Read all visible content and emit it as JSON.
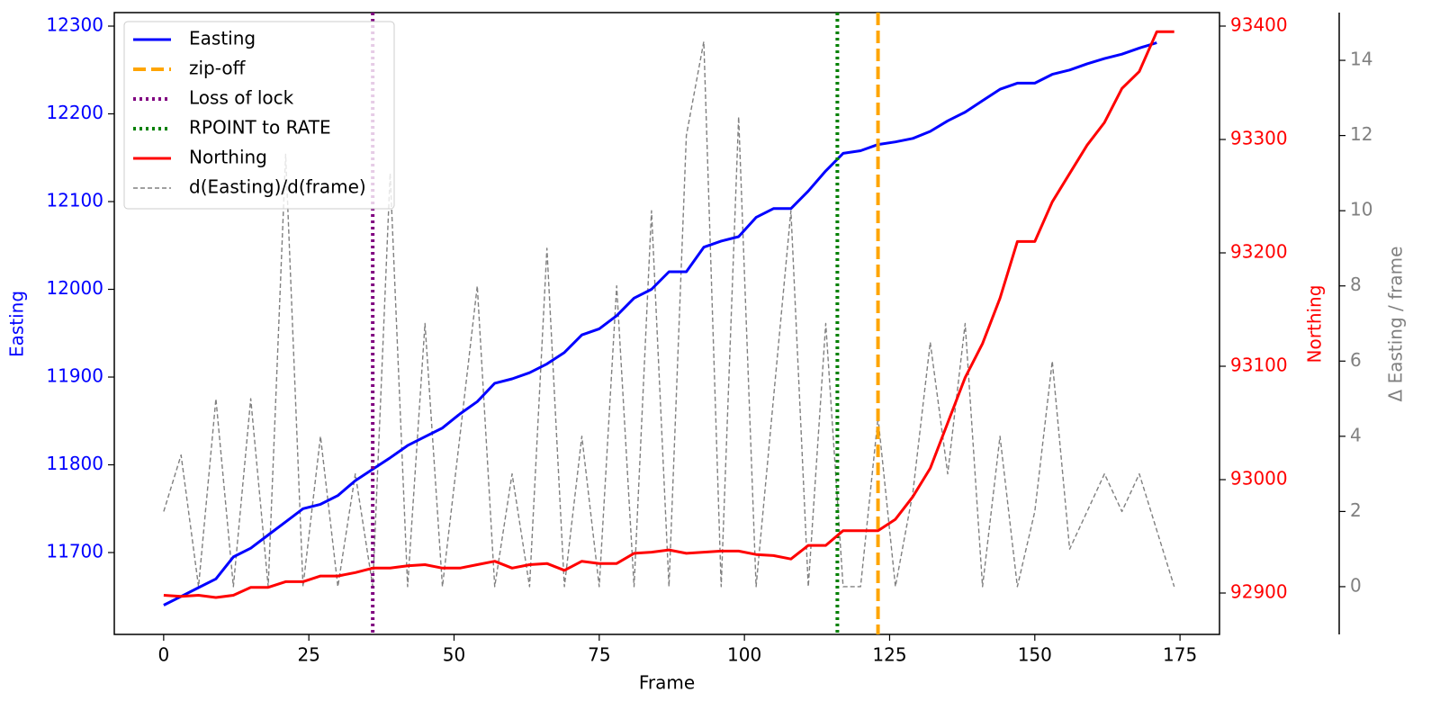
{
  "chart_data": {
    "type": "line",
    "xlabel": "Frame",
    "ylabel": "Easting",
    "y2label": "Northing",
    "y3label": "Δ Easting / frame",
    "x": [
      0,
      3,
      6,
      9,
      12,
      15,
      18,
      21,
      24,
      27,
      30,
      33,
      36,
      39,
      42,
      45,
      48,
      51,
      54,
      57,
      60,
      63,
      66,
      69,
      72,
      75,
      78,
      81,
      84,
      87,
      90,
      93,
      96,
      99,
      102,
      105,
      108,
      111,
      114,
      117,
      120,
      123,
      126,
      129,
      132,
      135,
      138,
      141,
      144,
      147,
      150,
      153,
      156,
      159,
      162,
      165,
      168,
      171,
      174
    ],
    "xlim": [
      -8.5,
      181.8
    ],
    "xticks": [
      0,
      25,
      50,
      75,
      100,
      125,
      150,
      175
    ],
    "ylim": [
      11606.7,
      12315.4
    ],
    "yticks": [
      11700,
      11800,
      11900,
      12000,
      12100,
      12200,
      12300
    ],
    "ycolor": "#0000ff",
    "y2lim": [
      92863.5,
      93411.9
    ],
    "y2ticks": [
      92900,
      93000,
      93100,
      93200,
      93300,
      93400
    ],
    "y2color": "#ff0000",
    "y3lim": [
      -1.27,
      15.27
    ],
    "y3ticks": [
      0,
      2,
      4,
      6,
      8,
      10,
      12,
      14
    ],
    "y3color": "#808080",
    "legend": "upper left",
    "series": [
      {
        "name": "Easting",
        "type": "line",
        "axis": "y",
        "color": "#0000ff",
        "style": "solid",
        "values": [
          11640,
          11650,
          11660,
          11670,
          11695,
          11705,
          11720,
          11735,
          11750,
          11755,
          11765,
          11782,
          11795,
          11808,
          11822,
          11832,
          11842,
          11858,
          11872,
          11893,
          11898,
          11905,
          11915,
          11928,
          11948,
          11955,
          11970,
          11990,
          12000,
          12020,
          12020,
          12048,
          12055,
          12060,
          12082,
          12092,
          12092,
          12112,
          12135,
          12155,
          12158,
          12165,
          12168,
          12172,
          12180,
          12192,
          12202,
          12215,
          12228,
          12235,
          12235,
          12245,
          12250,
          12257,
          12263,
          12268,
          12275,
          12281,
          null
        ]
      },
      {
        "name": "zip-off",
        "type": "vline",
        "x": 123,
        "color": "#ffa500",
        "style": "dashed"
      },
      {
        "name": "Loss of lock",
        "type": "vline",
        "x": 36,
        "color": "#800080",
        "style": "dotted"
      },
      {
        "name": "RPOINT to RATE",
        "type": "vline",
        "x": 116,
        "color": "#008000",
        "style": "dotted"
      },
      {
        "name": "Northing",
        "type": "line",
        "axis": "y2",
        "color": "#ff0000",
        "style": "solid",
        "values": [
          92898,
          92897,
          92898,
          92896,
          92898,
          92905,
          92905,
          92910,
          92910,
          92915,
          92915,
          92918,
          92922,
          92922,
          92924,
          92925,
          92922,
          92922,
          92925,
          92928,
          92922,
          92925,
          92926,
          92920,
          92928,
          92926,
          92926,
          92935,
          92936,
          92938,
          92935,
          92936,
          92937,
          92937,
          92934,
          92933,
          92930,
          92942,
          92942,
          92955,
          92955,
          92955,
          92965,
          92985,
          93010,
          93050,
          93090,
          93120,
          93160,
          93210,
          93210,
          93245,
          93270,
          93295,
          93315,
          93345,
          93360,
          93395,
          93395
        ]
      },
      {
        "name": "d(Easting)/d(frame)",
        "type": "line",
        "axis": "y3",
        "color": "#808080",
        "style": "thin-dashed",
        "values": [
          2,
          3.5,
          0,
          5,
          0,
          5,
          0,
          11.5,
          0,
          4,
          0,
          3,
          0,
          11,
          0,
          7,
          0,
          4,
          8,
          0,
          3,
          0,
          9,
          0,
          4,
          0,
          8,
          0,
          10,
          0,
          12,
          14.5,
          0,
          12.5,
          0,
          5,
          10,
          0,
          7,
          0,
          0,
          4.5,
          0,
          2.5,
          6.5,
          3,
          7,
          0,
          4,
          0,
          2,
          6,
          1,
          2,
          3,
          2,
          3,
          1.5,
          0
        ]
      }
    ]
  }
}
